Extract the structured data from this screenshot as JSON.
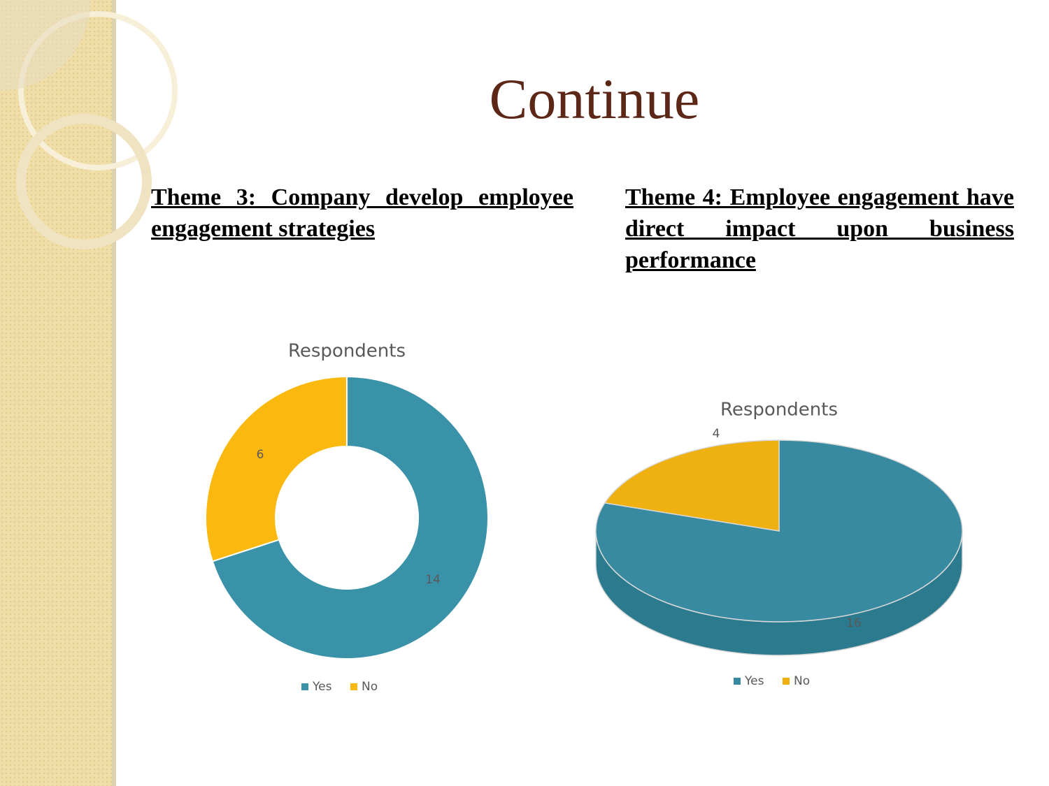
{
  "title": "Continue",
  "themes": [
    "Theme 3: Company develop employee engagement strategies",
    "Theme 4: Employee engagement have direct impact upon business performance"
  ],
  "chart_data": [
    {
      "type": "donut",
      "title": "Respondents",
      "categories": [
        "Yes",
        "No"
      ],
      "values": [
        14,
        6
      ],
      "colors": [
        "#3a92a8",
        "#fbb80f"
      ]
    },
    {
      "type": "pie3d",
      "title": "Respondents",
      "categories": [
        "Yes",
        "No"
      ],
      "values": [
        16,
        4
      ],
      "colors": [
        "#378aa0",
        "#eeb111"
      ]
    }
  ]
}
